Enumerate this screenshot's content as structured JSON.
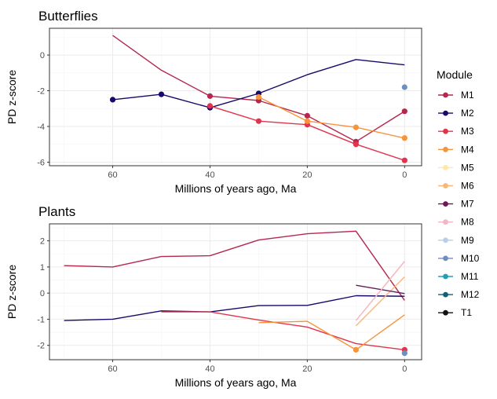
{
  "chart_data": [
    {
      "type": "line",
      "title": "Butterflies",
      "xlabel": "Millions of years ago, Ma",
      "ylabel": "PD z-score",
      "xlim": [
        73,
        -3.5
      ],
      "ylim": [
        -6.2,
        1.5
      ],
      "x_ticks": [
        60,
        40,
        20,
        0
      ],
      "x_tick_labels": [
        "60",
        "40",
        "20",
        "0"
      ],
      "y_ticks": [
        0,
        -2,
        -4,
        -6
      ],
      "y_tick_labels": [
        "0",
        "-2",
        "-4",
        "-6"
      ],
      "grid": true,
      "series": [
        {
          "name": "M1",
          "x": [
            60,
            50,
            40,
            30,
            20,
            10,
            0
          ],
          "y": [
            1.1,
            -0.85,
            -2.3,
            -2.55,
            -3.4,
            -4.85,
            -3.15
          ],
          "markers": [
            false,
            false,
            true,
            true,
            true,
            true,
            true
          ]
        },
        {
          "name": "M2",
          "x": [
            60,
            50,
            40,
            30,
            20,
            10,
            0
          ],
          "y": [
            -2.5,
            -2.2,
            -2.95,
            -2.15,
            -1.1,
            -0.25,
            -0.55
          ],
          "markers": [
            true,
            true,
            true,
            true,
            false,
            false,
            false
          ]
        },
        {
          "name": "M3",
          "x": [
            40,
            30,
            20,
            10,
            0
          ],
          "y": [
            -2.85,
            -3.7,
            -3.9,
            -5.0,
            -5.9
          ],
          "markers": [
            true,
            true,
            true,
            true,
            true
          ]
        },
        {
          "name": "M4",
          "x": [
            30,
            20,
            10,
            0
          ],
          "y": [
            -2.35,
            -3.7,
            -4.05,
            -4.65
          ],
          "markers": [
            true,
            true,
            true,
            true
          ]
        },
        {
          "name": "M10",
          "x": [
            0
          ],
          "y": [
            -1.8
          ],
          "markers": [
            true
          ]
        }
      ]
    },
    {
      "type": "line",
      "title": "Plants",
      "xlabel": "Millions of years ago, Ma",
      "ylabel": "PD z-score",
      "xlim": [
        73,
        -3.5
      ],
      "ylim": [
        -2.55,
        2.65
      ],
      "x_ticks": [
        60,
        40,
        20,
        0
      ],
      "x_tick_labels": [
        "60",
        "40",
        "20",
        "0"
      ],
      "y_ticks": [
        2,
        1,
        0,
        -1,
        -2
      ],
      "y_tick_labels": [
        "2",
        "1",
        "0",
        "-1",
        "-2"
      ],
      "grid": true,
      "series": [
        {
          "name": "M1",
          "x": [
            70,
            60,
            50,
            40,
            30,
            20,
            10,
            0
          ],
          "y": [
            1.05,
            1.0,
            1.4,
            1.43,
            2.03,
            2.27,
            2.37,
            -0.28
          ],
          "markers": [
            false,
            false,
            false,
            false,
            false,
            false,
            false,
            false
          ]
        },
        {
          "name": "M2",
          "x": [
            70,
            60,
            50,
            40,
            30,
            20,
            10,
            0
          ],
          "y": [
            -1.05,
            -1.0,
            -0.68,
            -0.72,
            -0.48,
            -0.47,
            -0.1,
            -0.12
          ],
          "markers": [
            false,
            false,
            false,
            false,
            false,
            false,
            false,
            false
          ]
        },
        {
          "name": "M3",
          "x": [
            50,
            40,
            30,
            20,
            10,
            0
          ],
          "y": [
            -0.72,
            -0.72,
            -1.03,
            -1.3,
            -1.93,
            -2.17
          ],
          "markers": [
            false,
            false,
            false,
            false,
            false,
            true
          ]
        },
        {
          "name": "M4",
          "x": [
            30,
            20,
            10,
            0
          ],
          "y": [
            -1.13,
            -1.08,
            -2.17,
            -0.83
          ],
          "markers": [
            false,
            false,
            true,
            false
          ]
        },
        {
          "name": "M5",
          "x": [
            10,
            0
          ],
          "y": [
            -1.05,
            1.2
          ],
          "markers": [
            false,
            false
          ]
        },
        {
          "name": "M6",
          "x": [
            10,
            0
          ],
          "y": [
            -1.25,
            0.62
          ],
          "markers": [
            false,
            false
          ]
        },
        {
          "name": "M7",
          "x": [
            10,
            0
          ],
          "y": [
            0.3,
            -0.02
          ],
          "markers": [
            false,
            false
          ]
        },
        {
          "name": "M8",
          "x": [
            10,
            0
          ],
          "y": [
            -1.05,
            1.22
          ],
          "markers": [
            false,
            false
          ]
        },
        {
          "name": "M10",
          "x": [
            0
          ],
          "y": [
            -2.3
          ],
          "markers": [
            true
          ]
        }
      ]
    }
  ],
  "legend": {
    "title": "Module",
    "position": "right",
    "items": [
      {
        "label": "M1",
        "color": "#b5274e"
      },
      {
        "label": "M2",
        "color": "#18096b"
      },
      {
        "label": "M3",
        "color": "#e0344b"
      },
      {
        "label": "M4",
        "color": "#f7943a"
      },
      {
        "label": "M5",
        "color": "#fde8a4"
      },
      {
        "label": "M6",
        "color": "#fab673"
      },
      {
        "label": "M7",
        "color": "#6b1a55"
      },
      {
        "label": "M8",
        "color": "#f4b6c6"
      },
      {
        "label": "M9",
        "color": "#b8cfe8"
      },
      {
        "label": "M10",
        "color": "#6d8fbf"
      },
      {
        "label": "M11",
        "color": "#21a0b4"
      },
      {
        "label": "M12",
        "color": "#155e73"
      },
      {
        "label": "T1",
        "color": "#111111"
      }
    ]
  }
}
